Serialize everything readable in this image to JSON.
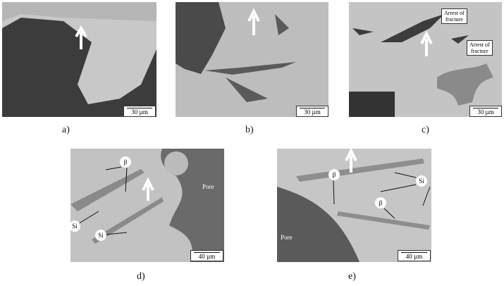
{
  "panels": [
    {
      "label": "a)",
      "scale_bar": "30 µm"
    },
    {
      "label": "b)",
      "scale_bar": "30 µm"
    },
    {
      "label": "c)",
      "scale_bar": "30 µm",
      "annotations": [
        "Arrest of\nfracture",
        "Arrest of\nfracture"
      ]
    },
    {
      "label": "d)",
      "scale_bar": "40 µm",
      "annotations": [
        "β",
        "Si",
        "Si",
        "Pore"
      ]
    },
    {
      "label": "e)",
      "scale_bar": "40 µm",
      "annotations": [
        "β",
        "β",
        "Si",
        "Pore"
      ]
    }
  ]
}
